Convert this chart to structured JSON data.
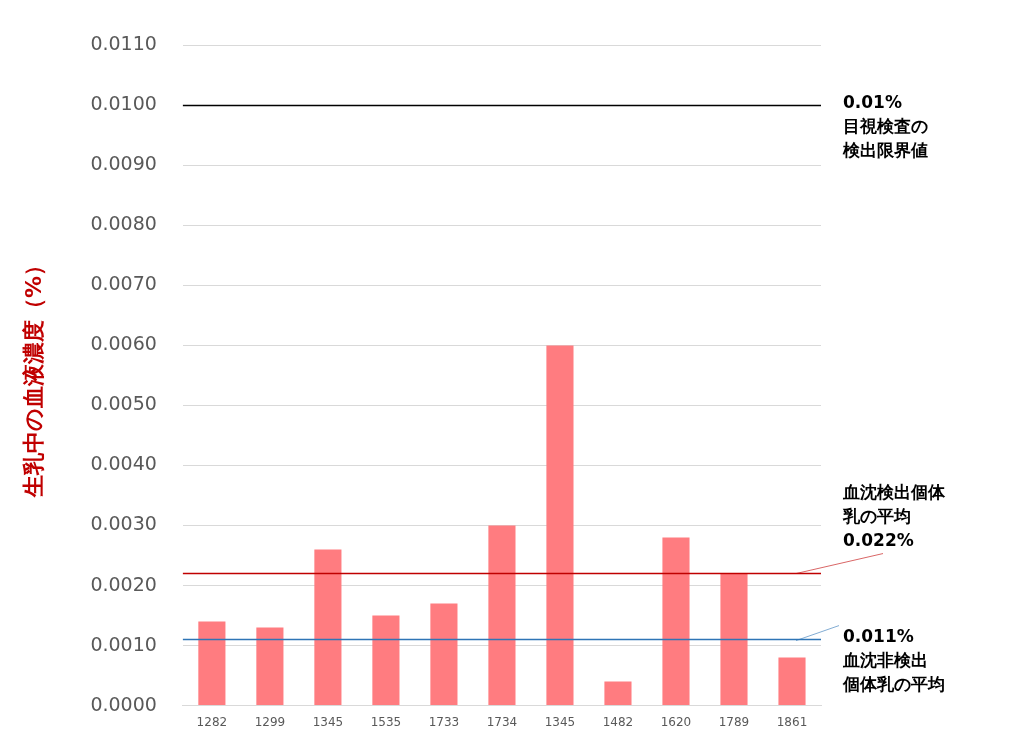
{
  "chart_data": {
    "type": "bar",
    "ylabel": "生乳中の血液濃度（%）",
    "categories": [
      "1282",
      "1299",
      "1345",
      "1535",
      "1733",
      "1734",
      "1345",
      "1482",
      "1620",
      "1789",
      "1861"
    ],
    "values": [
      0.0014,
      0.0013,
      0.0026,
      0.0015,
      0.0017,
      0.003,
      0.006,
      0.0004,
      0.0028,
      0.0022,
      0.0008
    ],
    "color": "#ff7c80",
    "ylim": [
      0,
      0.011
    ],
    "yticks": [
      {
        "value": 0,
        "label": "0.0000"
      },
      {
        "value": 0.001,
        "label": "0.0010"
      },
      {
        "value": 0.002,
        "label": "0.0020"
      },
      {
        "value": 0.003,
        "label": "0.0030"
      },
      {
        "value": 0.004,
        "label": "0.0040"
      },
      {
        "value": 0.005,
        "label": "0.0050"
      },
      {
        "value": 0.006,
        "label": "0.0060"
      },
      {
        "value": 0.007,
        "label": "0.0070"
      },
      {
        "value": 0.008,
        "label": "0.0080"
      },
      {
        "value": 0.009,
        "label": "0.0090"
      },
      {
        "value": 0.01,
        "label": "0.0100"
      },
      {
        "value": 0.011,
        "label": "0.0110"
      }
    ],
    "grid": "y",
    "ref_lines": [
      {
        "axis": "y",
        "value": 0.01,
        "label": "0.01%目視検査の検出限界値",
        "color": "#000000"
      },
      {
        "axis": "y",
        "value": 0.0022,
        "label": "血沈検出個体乳の平均 0.022%",
        "color": "#c00000"
      },
      {
        "axis": "y",
        "value": 0.0011,
        "label": "0.011%血沈非検出個体乳の平均",
        "color": "#2e75b6"
      }
    ]
  }
}
